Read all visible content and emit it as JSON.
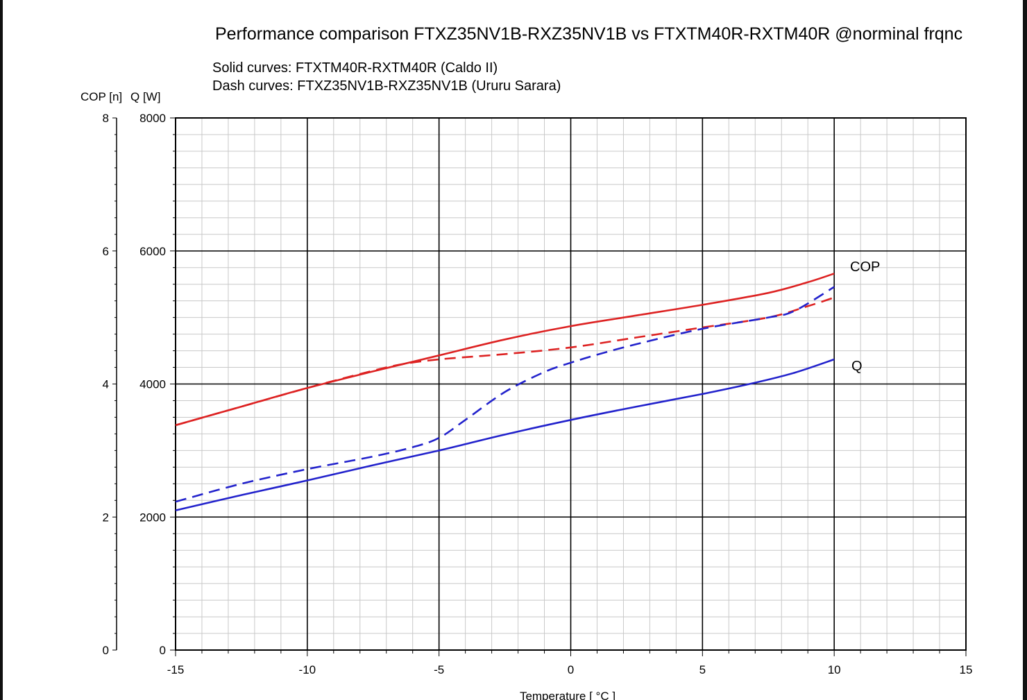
{
  "chart_data": {
    "type": "line",
    "title": "Performance comparison FTXZ35NV1B-RXZ35NV1B vs FTXTM40R-RXTM40R @norminal frqnc",
    "subtitle_lines": [
      "Solid curves: FTXTM40R-RXTM40R  (Caldo II)",
      "Dash curves: FTXZ35NV1B-RXZ35NV1B (Ururu Sarara)"
    ],
    "left_axis_label": "COP [n]",
    "right_axis_label": "Q [W]",
    "xlabel": "Temperature [ °C ]",
    "xlim": [
      -15,
      15
    ],
    "x_ticks": [
      -15,
      -10,
      -5,
      0,
      5,
      10,
      15
    ],
    "cop_lim": [
      0,
      8
    ],
    "cop_ticks": [
      0,
      2,
      4,
      6,
      8
    ],
    "q_lim": [
      0,
      8000
    ],
    "q_ticks": [
      0,
      2000,
      4000,
      6000,
      8000
    ],
    "grid": true,
    "curve_labels": {
      "cop": "COP",
      "q": "Q"
    },
    "colors": {
      "cop": "#dd2222",
      "q": "#2222cc",
      "grid_major": "#000000",
      "grid_minor": "#c8c8c8"
    },
    "series": [
      {
        "model": "FTXTM40R-RXTM40R",
        "quantity": "COP",
        "style": "solid",
        "x": [
          -15,
          -12.5,
          -10,
          -7.5,
          -5,
          -2.5,
          0,
          2.5,
          5,
          7.5,
          9,
          10
        ],
        "y": [
          3.38,
          3.66,
          3.94,
          4.19,
          4.43,
          4.67,
          4.87,
          5.03,
          5.19,
          5.37,
          5.53,
          5.66
        ]
      },
      {
        "model": "FTXZ35NV1B-RXZ35NV1B",
        "quantity": "COP",
        "style": "dashed",
        "x": [
          -15,
          -12.5,
          -10,
          -8,
          -6.5,
          -5,
          -2.5,
          0,
          2.5,
          5,
          7.5,
          9,
          10
        ],
        "y": [
          3.38,
          3.66,
          3.94,
          4.15,
          4.29,
          4.37,
          4.45,
          4.55,
          4.7,
          4.85,
          5.0,
          5.17,
          5.3
        ]
      },
      {
        "model": "FTXTM40R-RXTM40R",
        "quantity": "Q",
        "style": "solid",
        "x": [
          -15,
          -12.5,
          -10,
          -7.5,
          -5,
          -2.5,
          0,
          2.5,
          5,
          7,
          8.5,
          10
        ],
        "y": [
          2100,
          2330,
          2550,
          2780,
          3000,
          3240,
          3460,
          3660,
          3850,
          4020,
          4170,
          4370
        ]
      },
      {
        "model": "FTXZ35NV1B-RXZ35NV1B",
        "quantity": "Q",
        "style": "dashed",
        "x": [
          -15,
          -12.5,
          -10,
          -7.5,
          -6,
          -5,
          -4,
          -2.5,
          -1,
          0,
          1,
          2.5,
          5,
          7.5,
          8.5,
          10
        ],
        "y": [
          2230,
          2500,
          2720,
          2910,
          3050,
          3190,
          3460,
          3880,
          4180,
          4320,
          4440,
          4600,
          4830,
          5000,
          5100,
          5460
        ]
      }
    ]
  }
}
